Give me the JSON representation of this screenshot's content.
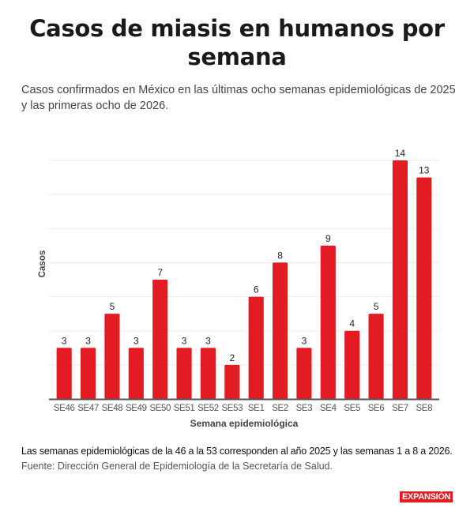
{
  "header": {
    "title": "Casos de miasis en humanos por semana",
    "subtitle": "Casos confirmados en México en las últimas ocho semanas epidemiológicas de 2025 y las primeras ocho de 2026."
  },
  "footer": {
    "note": "Las semanas epidemiológicas de la 46 a la 53 corresponden al año 2025 y las semanas 1 a 8 a 2026.",
    "source": "Fuente: Dirección General de Epidemiología de la Secretaría de Salud.",
    "logo": "EXPANSIÓN"
  },
  "colors": {
    "bar": "#e31b23",
    "grid": "#ebebeb",
    "axis": "#555555"
  },
  "chart_data": {
    "type": "bar",
    "title": "Casos de miasis en humanos por semana",
    "xlabel": "Semana epidemiológica",
    "ylabel": "Casos",
    "categories": [
      "SE46",
      "SE47",
      "SE48",
      "SE49",
      "SE50",
      "SE51",
      "SE52",
      "SE53",
      "SE1",
      "SE2",
      "SE3",
      "SE4",
      "SE5",
      "SE6",
      "SE7",
      "SE8"
    ],
    "values": [
      3,
      3,
      5,
      3,
      7,
      3,
      3,
      2,
      6,
      8,
      3,
      9,
      4,
      5,
      14,
      13
    ],
    "ylim": [
      0,
      14
    ],
    "grid": true,
    "grid_step": 2,
    "data_labels": true,
    "legend": "none"
  }
}
